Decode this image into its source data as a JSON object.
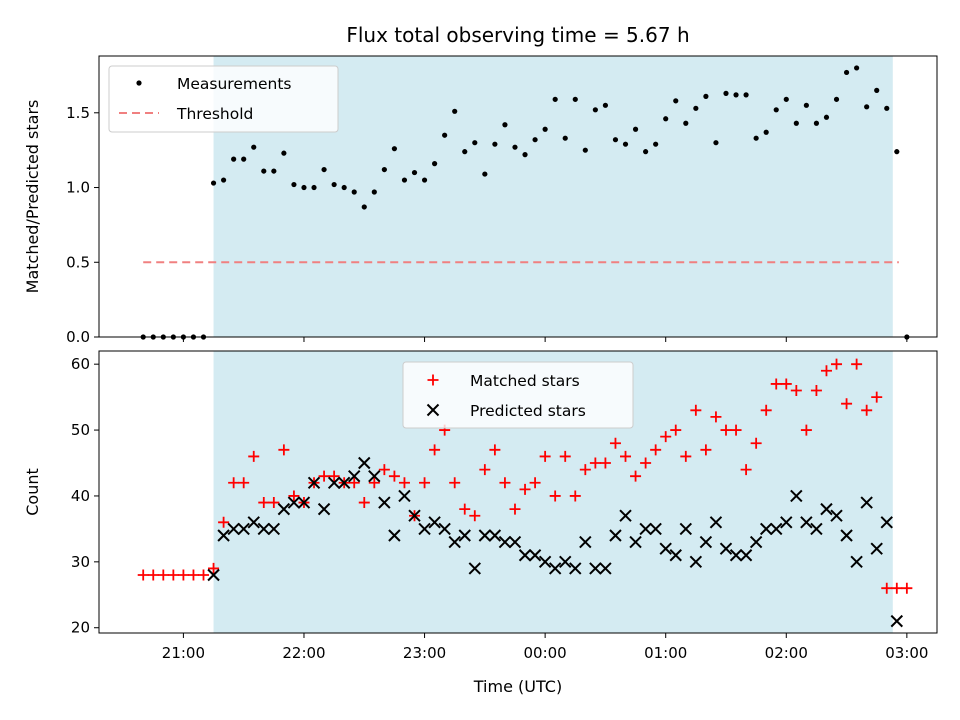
{
  "chart_data": [
    {
      "type": "scatter",
      "title": "Flux total observing time = 5.67 h",
      "xlabel": "",
      "ylabel": "Matched/Predicted stars",
      "xlim": [
        20.3,
        3.25
      ],
      "ylim": [
        0.0,
        1.88
      ],
      "yticks": [
        "0.0",
        "0.5",
        "1.0",
        "1.5"
      ],
      "ytick_values": [
        0.0,
        0.5,
        1.0,
        1.5
      ],
      "shaded_region": {
        "from": "21:15",
        "to": "02:53",
        "color": "#d4ebf2"
      },
      "legend": {
        "placement": "top-left",
        "entries": [
          "Measurements",
          "Threshold"
        ]
      },
      "series": [
        {
          "name": "Measurements",
          "marker": "dot",
          "color": "#000000",
          "x": [
            "20:40",
            "20:45",
            "20:50",
            "20:55",
            "21:00",
            "21:05",
            "21:10",
            "21:15",
            "21:20",
            "21:25",
            "21:30",
            "21:35",
            "21:40",
            "21:45",
            "21:50",
            "21:55",
            "22:00",
            "22:05",
            "22:10",
            "22:15",
            "22:20",
            "22:25",
            "22:30",
            "22:35",
            "22:40",
            "22:45",
            "22:50",
            "22:55",
            "23:00",
            "23:05",
            "23:10",
            "23:15",
            "23:20",
            "23:25",
            "23:30",
            "23:35",
            "23:40",
            "23:45",
            "23:50",
            "23:55",
            "00:00",
            "00:05",
            "00:10",
            "00:15",
            "00:20",
            "00:25",
            "00:30",
            "00:35",
            "00:40",
            "00:45",
            "00:50",
            "00:55",
            "01:00",
            "01:05",
            "01:10",
            "01:15",
            "01:20",
            "01:25",
            "01:30",
            "01:35",
            "01:40",
            "01:45",
            "01:50",
            "01:55",
            "02:00",
            "02:05",
            "02:10",
            "02:15",
            "02:20",
            "02:25",
            "02:30",
            "02:35",
            "02:40",
            "02:45",
            "02:50",
            "02:55",
            "03:00"
          ],
          "y": [
            0.0,
            0.0,
            0.0,
            0.0,
            0.0,
            0.0,
            0.0,
            1.03,
            1.05,
            1.19,
            1.19,
            1.27,
            1.11,
            1.11,
            1.23,
            1.02,
            1.0,
            1.0,
            1.12,
            1.02,
            1.0,
            0.97,
            0.87,
            0.97,
            1.12,
            1.26,
            1.05,
            1.1,
            1.05,
            1.16,
            1.35,
            1.51,
            1.24,
            1.3,
            1.09,
            1.29,
            1.42,
            1.27,
            1.22,
            1.32,
            1.39,
            1.59,
            1.33,
            1.59,
            1.25,
            1.52,
            1.55,
            1.32,
            1.29,
            1.39,
            1.24,
            1.29,
            1.46,
            1.58,
            1.43,
            1.53,
            1.61,
            1.3,
            1.63,
            1.62,
            1.62,
            1.33,
            1.37,
            1.52,
            1.59,
            1.43,
            1.55,
            1.43,
            1.47,
            1.59,
            1.77,
            1.8,
            1.54,
            1.65,
            1.53,
            1.24,
            0.0
          ]
        },
        {
          "name": "Threshold",
          "marker": "dashed-line",
          "color": "#f08080",
          "x": [
            "20:40",
            "02:56"
          ],
          "y": [
            0.5,
            0.5
          ]
        }
      ]
    },
    {
      "type": "scatter",
      "title": "",
      "xlabel": "Time (UTC)",
      "ylabel": "Count",
      "xlim": [
        20.3,
        3.25
      ],
      "ylim": [
        19.2,
        62.0
      ],
      "yticks": [
        "20",
        "30",
        "40",
        "50",
        "60"
      ],
      "ytick_values": [
        20,
        30,
        40,
        50,
        60
      ],
      "xticks": [
        "21:00",
        "22:00",
        "23:00",
        "00:00",
        "01:00",
        "02:00",
        "03:00"
      ],
      "shaded_region": {
        "from": "21:15",
        "to": "02:53",
        "color": "#d4ebf2"
      },
      "legend": {
        "placement": "top-center",
        "entries": [
          "Matched stars",
          "Predicted stars"
        ]
      },
      "series": [
        {
          "name": "Matched stars",
          "marker": "plus",
          "color": "#ff0000",
          "x": [
            "20:40",
            "20:45",
            "20:50",
            "20:55",
            "21:00",
            "21:05",
            "21:10",
            "21:15",
            "21:20",
            "21:25",
            "21:30",
            "21:35",
            "21:40",
            "21:45",
            "21:50",
            "21:55",
            "22:00",
            "22:05",
            "22:10",
            "22:15",
            "22:20",
            "22:25",
            "22:30",
            "22:35",
            "22:40",
            "22:45",
            "22:50",
            "22:55",
            "23:00",
            "23:05",
            "23:10",
            "23:15",
            "23:20",
            "23:25",
            "23:30",
            "23:35",
            "23:40",
            "23:45",
            "23:50",
            "23:55",
            "00:00",
            "00:05",
            "00:10",
            "00:15",
            "00:20",
            "00:25",
            "00:30",
            "00:35",
            "00:40",
            "00:45",
            "00:50",
            "00:55",
            "01:00",
            "01:05",
            "01:10",
            "01:15",
            "01:20",
            "01:25",
            "01:30",
            "01:35",
            "01:40",
            "01:45",
            "01:50",
            "01:55",
            "02:00",
            "02:05",
            "02:10",
            "02:15",
            "02:20",
            "02:25",
            "02:30",
            "02:35",
            "02:40",
            "02:45",
            "02:50",
            "02:55",
            "03:00"
          ],
          "y": [
            28,
            28,
            28,
            28,
            28,
            28,
            28,
            29,
            36,
            42,
            42,
            46,
            39,
            39,
            47,
            40,
            39,
            42,
            43,
            43,
            42,
            42,
            39,
            42,
            44,
            43,
            42,
            37,
            42,
            47,
            50,
            42,
            38,
            37,
            44,
            47,
            42,
            38,
            41,
            42,
            46,
            40,
            46,
            40,
            44,
            45,
            45,
            48,
            46,
            43,
            45,
            47,
            49,
            50,
            46,
            53,
            47,
            52,
            50,
            50,
            44,
            48,
            53,
            57,
            57,
            56,
            50,
            56,
            59,
            60,
            54,
            60,
            53,
            55,
            26,
            26,
            26
          ]
        },
        {
          "name": "Predicted stars",
          "marker": "x",
          "color": "#000000",
          "x": [
            "21:15",
            "21:20",
            "21:25",
            "21:30",
            "21:35",
            "21:40",
            "21:45",
            "21:50",
            "21:55",
            "22:00",
            "22:05",
            "22:10",
            "22:15",
            "22:20",
            "22:25",
            "22:30",
            "22:35",
            "22:40",
            "22:45",
            "22:50",
            "22:55",
            "23:00",
            "23:05",
            "23:10",
            "23:15",
            "23:20",
            "23:25",
            "23:30",
            "23:35",
            "23:40",
            "23:45",
            "23:50",
            "23:55",
            "00:00",
            "00:05",
            "00:10",
            "00:15",
            "00:20",
            "00:25",
            "00:30",
            "00:35",
            "00:40",
            "00:45",
            "00:50",
            "00:55",
            "01:00",
            "01:05",
            "01:10",
            "01:15",
            "01:20",
            "01:25",
            "01:30",
            "01:35",
            "01:40",
            "01:45",
            "01:50",
            "01:55",
            "02:00",
            "02:05",
            "02:10",
            "02:15",
            "02:20",
            "02:25",
            "02:30",
            "02:35",
            "02:40",
            "02:45",
            "02:50",
            "02:55"
          ],
          "y": [
            28,
            34,
            35,
            35,
            36,
            35,
            35,
            38,
            39,
            39,
            42,
            38,
            42,
            42,
            43,
            45,
            43,
            39,
            34,
            40,
            37,
            35,
            36,
            35,
            33,
            34,
            29,
            34,
            34,
            33,
            33,
            31,
            31,
            30,
            29,
            30,
            29,
            33,
            29,
            29,
            34,
            37,
            33,
            35,
            35,
            32,
            31,
            35,
            30,
            33,
            36,
            32,
            31,
            31,
            33,
            35,
            35,
            36,
            40,
            36,
            35,
            38,
            37,
            34,
            30,
            39,
            32,
            36,
            21
          ]
        }
      ]
    }
  ]
}
